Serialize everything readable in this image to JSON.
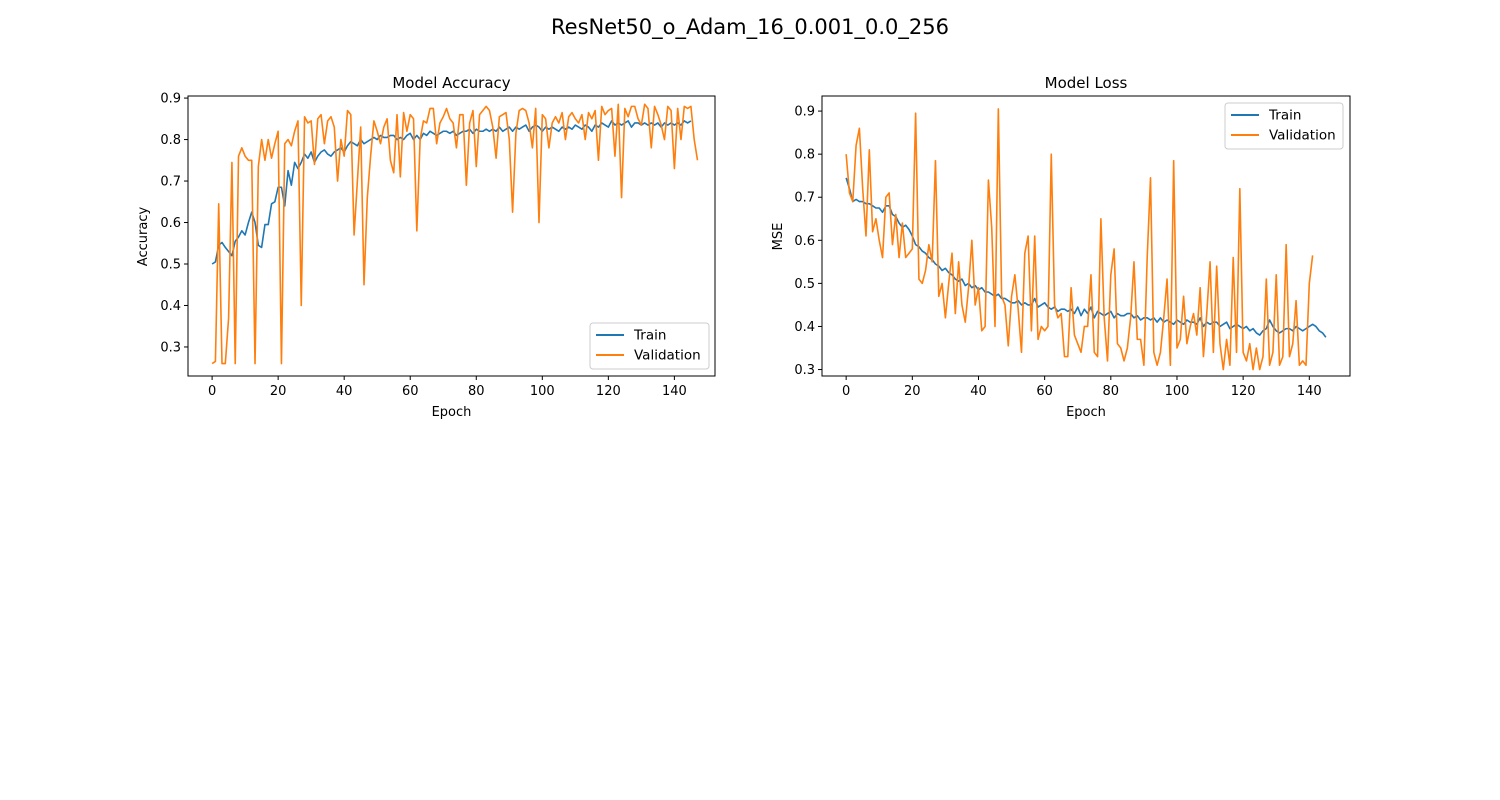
{
  "figure": {
    "title": "ResNet50_o_Adam_16_0.001_0.0_256"
  },
  "colors": {
    "train": "#1f77b4",
    "validation": "#ff7f0e",
    "axes": "#000000",
    "legend_border": "#cccccc"
  },
  "chart_data": [
    {
      "type": "line",
      "title": "Model Accuracy",
      "xlabel": "Epoch",
      "ylabel": "Accuracy",
      "xlim": [
        -7.3,
        152.3
      ],
      "ylim": [
        0.23,
        0.905
      ],
      "xticks": [
        0,
        20,
        40,
        60,
        80,
        100,
        120,
        140
      ],
      "yticks": [
        0.3,
        0.4,
        0.5,
        0.6,
        0.7,
        0.8,
        0.9
      ],
      "ytick_labels": [
        "0.3",
        "0.4",
        "0.5",
        "0.6",
        "0.7",
        "0.8",
        "0.9"
      ],
      "grid": false,
      "legend": "lower-right",
      "series": [
        {
          "name": "Train",
          "color": "#1f77b4",
          "values": [
            0.5,
            0.505,
            0.545,
            0.552,
            0.54,
            0.53,
            0.52,
            0.555,
            0.565,
            0.58,
            0.57,
            0.6,
            0.625,
            0.6,
            0.545,
            0.54,
            0.595,
            0.595,
            0.645,
            0.65,
            0.685,
            0.685,
            0.64,
            0.725,
            0.69,
            0.745,
            0.73,
            0.745,
            0.765,
            0.755,
            0.77,
            0.745,
            0.76,
            0.77,
            0.775,
            0.765,
            0.76,
            0.77,
            0.775,
            0.78,
            0.77,
            0.785,
            0.795,
            0.79,
            0.785,
            0.8,
            0.79,
            0.795,
            0.8,
            0.805,
            0.8,
            0.81,
            0.805,
            0.805,
            0.81,
            0.81,
            0.8,
            0.805,
            0.8,
            0.81,
            0.815,
            0.8,
            0.81,
            0.8,
            0.815,
            0.81,
            0.82,
            0.815,
            0.81,
            0.815,
            0.82,
            0.82,
            0.815,
            0.82,
            0.81,
            0.815,
            0.82,
            0.82,
            0.825,
            0.815,
            0.825,
            0.82,
            0.82,
            0.825,
            0.82,
            0.825,
            0.82,
            0.83,
            0.82,
            0.825,
            0.83,
            0.82,
            0.83,
            0.825,
            0.83,
            0.835,
            0.82,
            0.83,
            0.835,
            0.83,
            0.82,
            0.83,
            0.825,
            0.83,
            0.825,
            0.82,
            0.83,
            0.825,
            0.83,
            0.825,
            0.835,
            0.83,
            0.825,
            0.835,
            0.83,
            0.82,
            0.835,
            0.83,
            0.84,
            0.835,
            0.83,
            0.845,
            0.835,
            0.84,
            0.835,
            0.84,
            0.845,
            0.83,
            0.84,
            0.84,
            0.835,
            0.84,
            0.835,
            0.84,
            0.835,
            0.84,
            0.83,
            0.84,
            0.835,
            0.84,
            0.835,
            0.84,
            0.835,
            0.845,
            0.84,
            0.845
          ],
          "x_start": 0
        },
        {
          "name": "Validation",
          "color": "#ff7f0e",
          "values": [
            0.26,
            0.265,
            0.645,
            0.26,
            0.26,
            0.37,
            0.745,
            0.26,
            0.76,
            0.78,
            0.76,
            0.75,
            0.75,
            0.26,
            0.735,
            0.8,
            0.75,
            0.8,
            0.755,
            0.79,
            0.82,
            0.26,
            0.79,
            0.8,
            0.785,
            0.82,
            0.845,
            0.4,
            0.855,
            0.84,
            0.845,
            0.74,
            0.85,
            0.86,
            0.79,
            0.845,
            0.855,
            0.83,
            0.7,
            0.8,
            0.76,
            0.87,
            0.86,
            0.57,
            0.7,
            0.83,
            0.45,
            0.66,
            0.76,
            0.845,
            0.82,
            0.79,
            0.83,
            0.85,
            0.75,
            0.72,
            0.86,
            0.71,
            0.865,
            0.82,
            0.86,
            0.85,
            0.58,
            0.8,
            0.845,
            0.84,
            0.875,
            0.875,
            0.79,
            0.84,
            0.855,
            0.875,
            0.85,
            0.84,
            0.78,
            0.86,
            0.86,
            0.69,
            0.84,
            0.87,
            0.735,
            0.86,
            0.87,
            0.88,
            0.87,
            0.83,
            0.755,
            0.855,
            0.86,
            0.865,
            0.8,
            0.625,
            0.815,
            0.87,
            0.875,
            0.87,
            0.84,
            0.78,
            0.875,
            0.6,
            0.86,
            0.85,
            0.78,
            0.84,
            0.855,
            0.84,
            0.865,
            0.8,
            0.855,
            0.865,
            0.85,
            0.84,
            0.86,
            0.8,
            0.865,
            0.85,
            0.87,
            0.75,
            0.88,
            0.86,
            0.87,
            0.875,
            0.76,
            0.885,
            0.66,
            0.875,
            0.855,
            0.88,
            0.88,
            0.85,
            0.835,
            0.885,
            0.875,
            0.78,
            0.88,
            0.86,
            0.835,
            0.8,
            0.88,
            0.87,
            0.73,
            0.875,
            0.8,
            0.88,
            0.875,
            0.88,
            0.8,
            0.75
          ],
          "x_start": 0
        }
      ]
    },
    {
      "type": "line",
      "title": "Model Loss",
      "xlabel": "Epoch",
      "ylabel": "MSE",
      "xlim": [
        -7.3,
        152.3
      ],
      "ylim": [
        0.285,
        0.935
      ],
      "xticks": [
        0,
        20,
        40,
        60,
        80,
        100,
        120,
        140
      ],
      "yticks": [
        0.3,
        0.4,
        0.5,
        0.6,
        0.7,
        0.8,
        0.9
      ],
      "ytick_labels": [
        "0.3",
        "0.4",
        "0.5",
        "0.6",
        "0.7",
        "0.8",
        "0.9"
      ],
      "grid": false,
      "legend": "upper-right",
      "series": [
        {
          "name": "Train",
          "color": "#1f77b4",
          "values": [
            0.745,
            0.72,
            0.69,
            0.695,
            0.69,
            0.69,
            0.685,
            0.685,
            0.68,
            0.675,
            0.675,
            0.665,
            0.68,
            0.68,
            0.66,
            0.655,
            0.64,
            0.63,
            0.635,
            0.625,
            0.61,
            0.59,
            0.585,
            0.575,
            0.57,
            0.56,
            0.555,
            0.545,
            0.54,
            0.53,
            0.535,
            0.525,
            0.52,
            0.51,
            0.505,
            0.51,
            0.495,
            0.5,
            0.49,
            0.495,
            0.485,
            0.49,
            0.48,
            0.48,
            0.475,
            0.47,
            0.475,
            0.465,
            0.465,
            0.46,
            0.455,
            0.455,
            0.46,
            0.45,
            0.455,
            0.45,
            0.45,
            0.465,
            0.445,
            0.45,
            0.455,
            0.445,
            0.44,
            0.445,
            0.435,
            0.44,
            0.44,
            0.435,
            0.44,
            0.43,
            0.445,
            0.425,
            0.44,
            0.43,
            0.445,
            0.42,
            0.435,
            0.43,
            0.425,
            0.43,
            0.435,
            0.42,
            0.43,
            0.425,
            0.425,
            0.43,
            0.43,
            0.42,
            0.425,
            0.415,
            0.42,
            0.42,
            0.415,
            0.42,
            0.41,
            0.42,
            0.41,
            0.415,
            0.41,
            0.405,
            0.415,
            0.41,
            0.405,
            0.415,
            0.41,
            0.41,
            0.405,
            0.42,
            0.4,
            0.41,
            0.405,
            0.41,
            0.41,
            0.4,
            0.405,
            0.41,
            0.395,
            0.4,
            0.405,
            0.4,
            0.395,
            0.4,
            0.39,
            0.395,
            0.385,
            0.38,
            0.39,
            0.395,
            0.415,
            0.4,
            0.39,
            0.385,
            0.39,
            0.395,
            0.395,
            0.39,
            0.4,
            0.395,
            0.39,
            0.395,
            0.4,
            0.405,
            0.4,
            0.39,
            0.385,
            0.375
          ],
          "x_start": 0
        },
        {
          "name": "Validation",
          "color": "#ff7f0e",
          "values": [
            0.8,
            0.71,
            0.69,
            0.82,
            0.86,
            0.72,
            0.61,
            0.81,
            0.62,
            0.65,
            0.6,
            0.56,
            0.7,
            0.71,
            0.59,
            0.66,
            0.56,
            0.64,
            0.56,
            0.57,
            0.58,
            0.895,
            0.51,
            0.5,
            0.53,
            0.59,
            0.55,
            0.785,
            0.47,
            0.5,
            0.42,
            0.5,
            0.57,
            0.43,
            0.55,
            0.45,
            0.41,
            0.49,
            0.6,
            0.45,
            0.49,
            0.39,
            0.4,
            0.74,
            0.63,
            0.4,
            0.905,
            0.47,
            0.45,
            0.355,
            0.47,
            0.52,
            0.44,
            0.34,
            0.57,
            0.61,
            0.39,
            0.61,
            0.37,
            0.4,
            0.39,
            0.4,
            0.8,
            0.45,
            0.42,
            0.43,
            0.33,
            0.33,
            0.49,
            0.38,
            0.36,
            0.34,
            0.4,
            0.4,
            0.52,
            0.34,
            0.33,
            0.65,
            0.42,
            0.32,
            0.52,
            0.58,
            0.36,
            0.35,
            0.32,
            0.35,
            0.42,
            0.55,
            0.37,
            0.37,
            0.31,
            0.56,
            0.745,
            0.34,
            0.31,
            0.34,
            0.42,
            0.51,
            0.31,
            0.785,
            0.35,
            0.37,
            0.47,
            0.36,
            0.4,
            0.43,
            0.38,
            0.49,
            0.33,
            0.43,
            0.55,
            0.34,
            0.54,
            0.36,
            0.3,
            0.37,
            0.31,
            0.56,
            0.34,
            0.72,
            0.34,
            0.32,
            0.36,
            0.3,
            0.35,
            0.3,
            0.33,
            0.51,
            0.31,
            0.34,
            0.52,
            0.31,
            0.33,
            0.59,
            0.33,
            0.36,
            0.46,
            0.31,
            0.32,
            0.31,
            0.5,
            0.565
          ],
          "x_start": 0
        }
      ]
    }
  ]
}
